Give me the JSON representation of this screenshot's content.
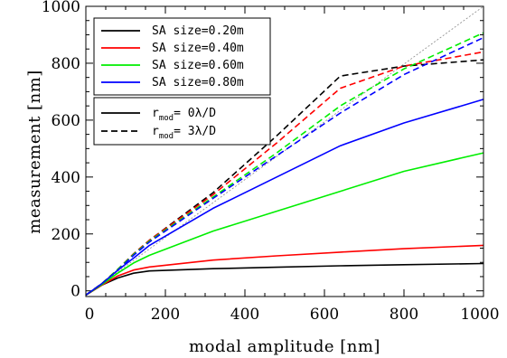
{
  "chart_data": {
    "type": "line",
    "xlabel": "modal amplitude [nm]",
    "ylabel": "measurement [nm]",
    "xlim": [
      0,
      1000
    ],
    "ylim": [
      -20,
      1000
    ],
    "xticks": [
      0,
      200,
      400,
      600,
      800,
      1000
    ],
    "yticks": [
      0,
      200,
      400,
      600,
      800,
      1000
    ],
    "grid": false,
    "x": [
      0,
      40,
      80,
      120,
      160,
      320,
      480,
      640,
      800,
      1000
    ],
    "series": [
      {
        "name": "SA size=0.20m",
        "style": "solid",
        "color": "#000000",
        "values": [
          -15,
          20,
          45,
          62,
          70,
          78,
          83,
          88,
          92,
          96
        ]
      },
      {
        "name": "SA size=0.40m",
        "style": "solid",
        "color": "#ff0000",
        "values": [
          -15,
          20,
          52,
          73,
          84,
          108,
          123,
          136,
          148,
          160
        ]
      },
      {
        "name": "SA size=0.60m",
        "style": "solid",
        "color": "#00ee00",
        "values": [
          -15,
          22,
          62,
          98,
          125,
          210,
          280,
          350,
          420,
          485
        ]
      },
      {
        "name": "SA size=0.80m",
        "style": "solid",
        "color": "#0000ff",
        "values": [
          -15,
          25,
          72,
          115,
          160,
          290,
          400,
          510,
          590,
          673
        ]
      },
      {
        "style": "dashed",
        "color": "#000000",
        "values": [
          -15,
          25,
          75,
          130,
          178,
          345,
          545,
          755,
          790,
          812
        ]
      },
      {
        "style": "dashed",
        "color": "#ff0000",
        "values": [
          -15,
          25,
          75,
          130,
          178,
          338,
          520,
          712,
          790,
          840
        ]
      },
      {
        "style": "dashed",
        "color": "#00ee00",
        "values": [
          -15,
          25,
          75,
          128,
          175,
          330,
          485,
          650,
          780,
          907
        ]
      },
      {
        "style": "dashed",
        "color": "#0000ff",
        "values": [
          -15,
          25,
          72,
          125,
          172,
          325,
          475,
          625,
          760,
          890
        ]
      }
    ],
    "reference_line": {
      "x": [
        0,
        1000
      ],
      "y": [
        -15,
        1000
      ],
      "color": "#888888",
      "style": "dotted"
    },
    "legend_size": {
      "placement": "top-left",
      "entries": [
        {
          "label": "SA size=0.20m",
          "color": "#000000"
        },
        {
          "label": "SA size=0.40m",
          "color": "#ff0000"
        },
        {
          "label": "SA size=0.60m",
          "color": "#00ee00"
        },
        {
          "label": "SA size=0.80m",
          "color": "#0000ff"
        }
      ]
    },
    "legend_mod": {
      "placement": "upper-left",
      "entries": [
        {
          "prefix": "r",
          "sub": "mod",
          "suffix": "= 0λ/D",
          "style": "solid"
        },
        {
          "prefix": "r",
          "sub": "mod",
          "suffix": "= 3λ/D",
          "style": "dashed"
        }
      ]
    }
  }
}
